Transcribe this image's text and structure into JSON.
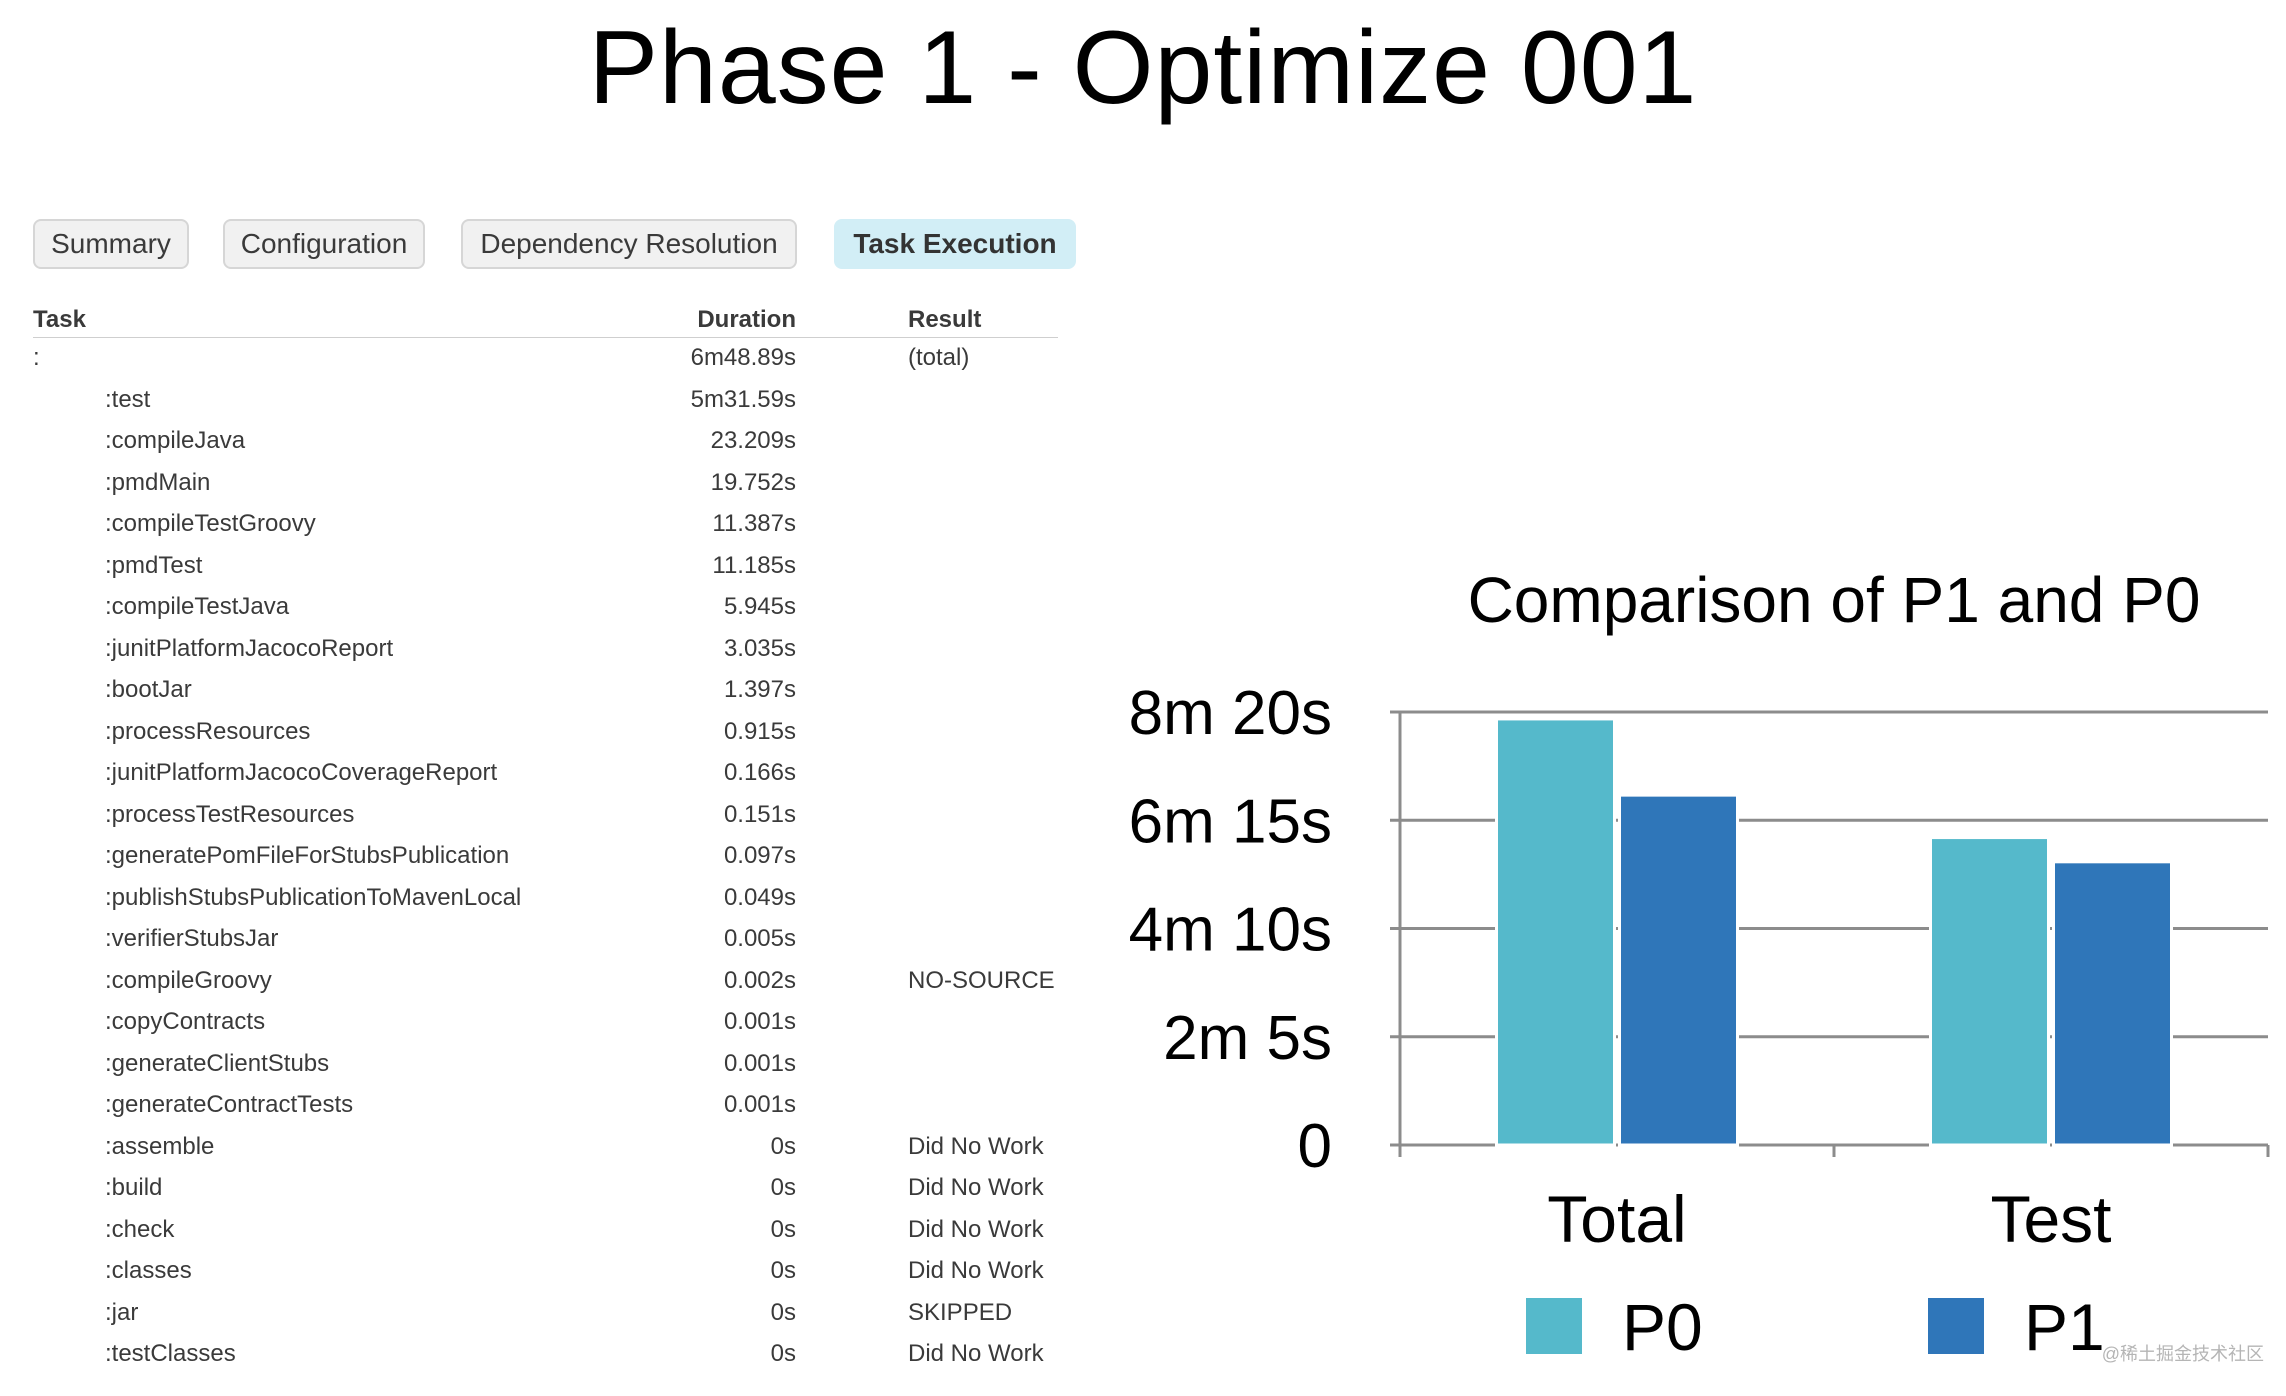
{
  "slide": {
    "title": "Phase 1 - Optimize 001"
  },
  "tabs": [
    {
      "label": "Summary",
      "active": false
    },
    {
      "label": "Configuration",
      "active": false
    },
    {
      "label": "Dependency Resolution",
      "active": false
    },
    {
      "label": "Task Execution",
      "active": true
    }
  ],
  "table": {
    "headers": {
      "task": "Task",
      "duration": "Duration",
      "result": "Result"
    },
    "rows": [
      {
        "task": ":",
        "duration": "6m48.89s",
        "result": "(total)"
      },
      {
        "task": ":test",
        "duration": "5m31.59s",
        "result": ""
      },
      {
        "task": ":compileJava",
        "duration": "23.209s",
        "result": ""
      },
      {
        "task": ":pmdMain",
        "duration": "19.752s",
        "result": ""
      },
      {
        "task": ":compileTestGroovy",
        "duration": "11.387s",
        "result": ""
      },
      {
        "task": ":pmdTest",
        "duration": "11.185s",
        "result": ""
      },
      {
        "task": ":compileTestJava",
        "duration": "5.945s",
        "result": ""
      },
      {
        "task": ":junitPlatformJacocoReport",
        "duration": "3.035s",
        "result": ""
      },
      {
        "task": ":bootJar",
        "duration": "1.397s",
        "result": ""
      },
      {
        "task": ":processResources",
        "duration": "0.915s",
        "result": ""
      },
      {
        "task": ":junitPlatformJacocoCoverageReport",
        "duration": "0.166s",
        "result": ""
      },
      {
        "task": ":processTestResources",
        "duration": "0.151s",
        "result": ""
      },
      {
        "task": ":generatePomFileForStubsPublication",
        "duration": "0.097s",
        "result": ""
      },
      {
        "task": ":publishStubsPublicationToMavenLocal",
        "duration": "0.049s",
        "result": ""
      },
      {
        "task": ":verifierStubsJar",
        "duration": "0.005s",
        "result": ""
      },
      {
        "task": ":compileGroovy",
        "duration": "0.002s",
        "result": "NO-SOURCE"
      },
      {
        "task": ":copyContracts",
        "duration": "0.001s",
        "result": ""
      },
      {
        "task": ":generateClientStubs",
        "duration": "0.001s",
        "result": ""
      },
      {
        "task": ":generateContractTests",
        "duration": "0.001s",
        "result": ""
      },
      {
        "task": ":assemble",
        "duration": "0s",
        "result": "Did No Work"
      },
      {
        "task": ":build",
        "duration": "0s",
        "result": "Did No Work"
      },
      {
        "task": ":check",
        "duration": "0s",
        "result": "Did No Work"
      },
      {
        "task": ":classes",
        "duration": "0s",
        "result": "Did No Work"
      },
      {
        "task": ":jar",
        "duration": "0s",
        "result": "SKIPPED"
      },
      {
        "task": ":testClasses",
        "duration": "0s",
        "result": "Did No Work"
      }
    ]
  },
  "chart_data": {
    "type": "bar",
    "title": "Comparison of P1 and P0",
    "categories": [
      "Total",
      "Test"
    ],
    "ylim": [
      0,
      500
    ],
    "yticks": [
      0,
      125,
      250,
      375,
      500
    ],
    "ytick_labels": [
      "0",
      "2m 5s",
      "4m 10s",
      "6m 15s",
      "8m 20s"
    ],
    "grid": true,
    "legend": "bottom",
    "series": [
      {
        "name": "P0",
        "color": "#55b9cb",
        "values": [
          492,
          355
        ]
      },
      {
        "name": "P1",
        "color": "#2f76b9",
        "values": [
          404,
          327
        ]
      }
    ]
  },
  "watermark": "@稀土掘金技术社区"
}
